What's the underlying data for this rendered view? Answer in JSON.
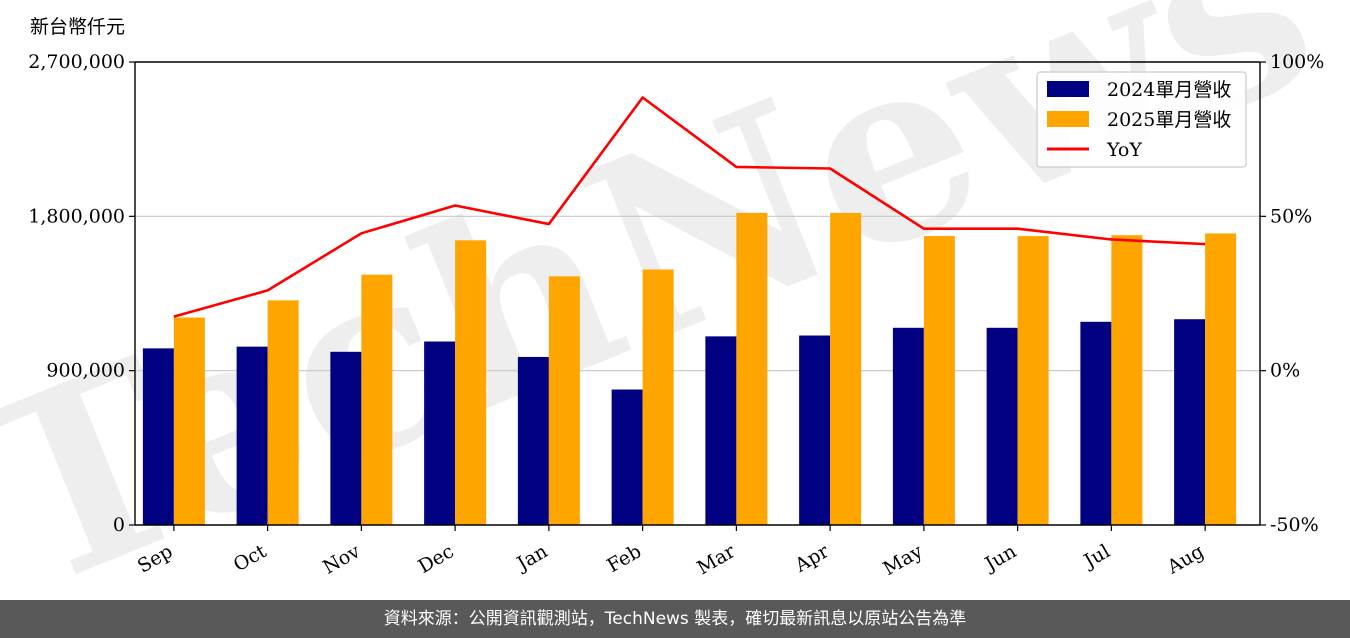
{
  "watermark": "TechNews",
  "footer": {
    "source": "資料來源：公開資訊觀測站，TechNews 製表，確切最新訊息以原站公告為準"
  },
  "chart_data": {
    "type": "bar",
    "unit_label": "新台幣仟元",
    "categories": [
      "Sep",
      "Oct",
      "Nov",
      "Dec",
      "Jan",
      "Feb",
      "Mar",
      "Apr",
      "May",
      "Jun",
      "Jul",
      "Aug"
    ],
    "series": [
      {
        "name": "2024單月營收",
        "type": "bar",
        "axis": "left",
        "color": "#000080",
        "values": [
          1030000,
          1040000,
          1010000,
          1070000,
          980000,
          790000,
          1100000,
          1105000,
          1150000,
          1150000,
          1185000,
          1200000
        ]
      },
      {
        "name": "2025單月營收",
        "type": "bar",
        "axis": "left",
        "color": "#FFA500",
        "values": [
          1210000,
          1310000,
          1460000,
          1660000,
          1450000,
          1490000,
          1820000,
          1820000,
          1685000,
          1685000,
          1690000,
          1700000
        ]
      },
      {
        "name": "YoY",
        "type": "line",
        "axis": "right",
        "color": "#FF0000",
        "values": [
          17.5,
          26,
          44.5,
          53.5,
          47.5,
          88.5,
          66,
          65.5,
          46,
          46,
          42.5,
          41
        ]
      }
    ],
    "y_left": {
      "min": 0,
      "max": 2700000,
      "ticks": [
        0,
        900000,
        1800000,
        2700000
      ],
      "tick_labels": [
        "0",
        "900,000",
        "1,800,000",
        "2,700,000"
      ]
    },
    "y_right": {
      "min": -50,
      "max": 100,
      "ticks": [
        -50,
        0,
        50,
        100
      ],
      "tick_labels": [
        "-50%",
        "0%",
        "50%",
        "100%"
      ]
    },
    "grid": "horizontal",
    "legend_position": "top-right"
  }
}
